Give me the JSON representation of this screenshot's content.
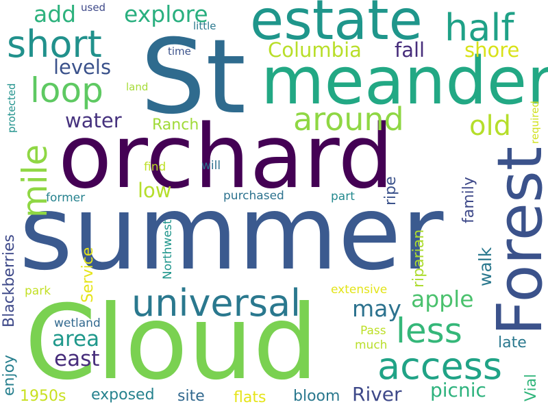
{
  "words": [
    {
      "text": "St",
      "color": "#2f6b8e"
    },
    {
      "text": "summer",
      "color": "#3b5a8f"
    },
    {
      "text": "orchard",
      "color": "#440154"
    },
    {
      "text": "Cloud",
      "color": "#7ad151"
    },
    {
      "text": "meander",
      "color": "#22a884"
    },
    {
      "text": "estate",
      "color": "#1f968b"
    },
    {
      "text": "Forest",
      "color": "#3b528b"
    },
    {
      "text": "universal",
      "color": "#2a788e"
    },
    {
      "text": "access",
      "color": "#20a386"
    },
    {
      "text": "half",
      "color": "#1fa187"
    },
    {
      "text": "short",
      "color": "#21918c"
    },
    {
      "text": "loop",
      "color": "#5ec962"
    },
    {
      "text": "around",
      "color": "#8fd744"
    },
    {
      "text": "mile",
      "color": "#8fd744"
    },
    {
      "text": "less",
      "color": "#35b779"
    },
    {
      "text": "old",
      "color": "#b5de2b"
    },
    {
      "text": "explore",
      "color": "#29af7f"
    },
    {
      "text": "add",
      "color": "#2db27d"
    },
    {
      "text": "Columbia",
      "color": "#b8de29"
    },
    {
      "text": "fall",
      "color": "#472d7b"
    },
    {
      "text": "shore",
      "color": "#d8e219"
    },
    {
      "text": "levels",
      "color": "#3b528b"
    },
    {
      "text": "water",
      "color": "#46327e"
    },
    {
      "text": "Ranch",
      "color": "#a0da39"
    },
    {
      "text": "low",
      "color": "#b5de2b"
    },
    {
      "text": "apple",
      "color": "#4ac16d"
    },
    {
      "text": "may",
      "color": "#2c728e"
    },
    {
      "text": "area",
      "color": "#1f988b"
    },
    {
      "text": "east",
      "color": "#472d7b"
    },
    {
      "text": "River",
      "color": "#3e4989"
    },
    {
      "text": "picnic",
      "color": "#2db27d"
    },
    {
      "text": "exposed",
      "color": "#26828e"
    },
    {
      "text": "site",
      "color": "#31688e"
    },
    {
      "text": "flats",
      "color": "#e5e419"
    },
    {
      "text": "bloom",
      "color": "#2a788e"
    },
    {
      "text": "1950s",
      "color": "#c8e020"
    },
    {
      "text": "late",
      "color": "#2a788e"
    },
    {
      "text": "walk",
      "color": "#2a788e"
    },
    {
      "text": "Vial",
      "color": "#31b57b"
    },
    {
      "text": "family",
      "color": "#3e4989"
    },
    {
      "text": "ripe",
      "color": "#3b528b"
    },
    {
      "text": "riparian",
      "color": "#addc30"
    },
    {
      "text": "Blackberries",
      "color": "#3e4989"
    },
    {
      "text": "Service",
      "color": "#e5e419"
    },
    {
      "text": "enjoy",
      "color": "#277f8e"
    },
    {
      "text": "wetland",
      "color": "#31688e"
    },
    {
      "text": "park",
      "color": "#c2df23"
    },
    {
      "text": "extensive",
      "color": "#e2e418"
    },
    {
      "text": "Pass",
      "color": "#bddf26"
    },
    {
      "text": "much",
      "color": "#b8de29"
    },
    {
      "text": "purchased",
      "color": "#2c728e"
    },
    {
      "text": "part",
      "color": "#23898e"
    },
    {
      "text": "former",
      "color": "#26828e"
    },
    {
      "text": "will",
      "color": "#2d708e"
    },
    {
      "text": "find",
      "color": "#bddf26"
    },
    {
      "text": "Northwest",
      "color": "#1f958b"
    },
    {
      "text": "used",
      "color": "#3e4989"
    },
    {
      "text": "little",
      "color": "#2a788e"
    },
    {
      "text": "time",
      "color": "#3b528b"
    },
    {
      "text": "land",
      "color": "#a5db36"
    },
    {
      "text": "protected",
      "color": "#20928c"
    },
    {
      "text": "required",
      "color": "#d0e11c"
    }
  ]
}
